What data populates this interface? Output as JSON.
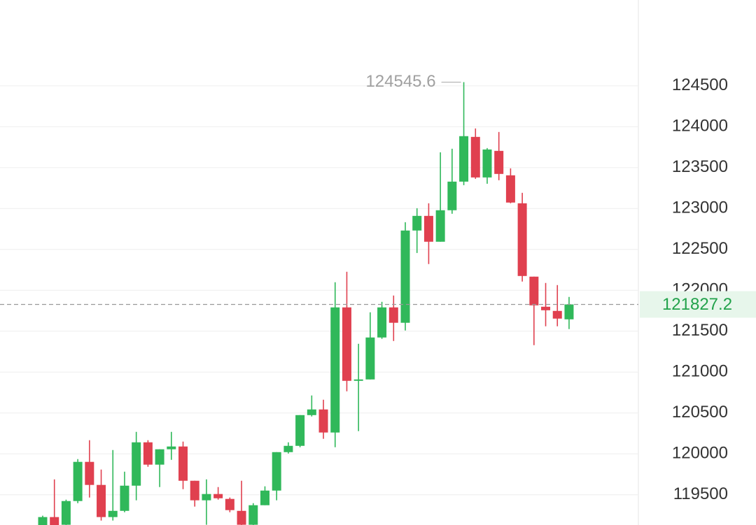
{
  "chart_data": {
    "type": "candlestick",
    "up_color": "#30b85a",
    "down_color": "#e0404f",
    "ylim": [
      119130,
      125550
    ],
    "yticks": [
      119500,
      120000,
      120500,
      121000,
      121500,
      122000,
      122500,
      123000,
      123500,
      124000,
      124500
    ],
    "grid": true,
    "open": [
      119056,
      119227,
      119133,
      119423,
      119902,
      119620,
      119227,
      119303,
      119611,
      120141,
      119868,
      120056,
      120090,
      119671,
      119432,
      119509,
      119449,
      119303,
      119133,
      119372,
      119551,
      120021,
      120098,
      120474,
      120543,
      120261,
      121791,
      120893,
      120910,
      121423,
      121791,
      121603,
      122731,
      122910,
      122594,
      122979,
      123329,
      123876,
      123380,
      123705,
      123406,
      123064,
      122167,
      121799,
      121748,
      121645
    ],
    "high": [
      119244,
      119688,
      119440,
      119936,
      120167,
      119808,
      120047,
      119782,
      120269,
      120167,
      120056,
      120269,
      120150,
      119671,
      119688,
      119594,
      119466,
      119671,
      119397,
      119603,
      120021,
      120141,
      120474,
      120714,
      120662,
      122098,
      122227,
      121346,
      121731,
      121859,
      121936,
      122833,
      123004,
      123064,
      123688,
      123731,
      124545.6,
      123979,
      123739,
      123936,
      123491,
      123192,
      122167,
      122090,
      122064,
      121919
    ],
    "low": [
      119056,
      119056,
      119056,
      119397,
      119466,
      119184,
      119184,
      119286,
      119432,
      119842,
      119594,
      119927,
      119568,
      119355,
      119133,
      119440,
      119286,
      119100,
      119100,
      119372,
      119432,
      120004,
      120081,
      120457,
      120184,
      120081,
      120765,
      120278,
      120910,
      121406,
      121380,
      121509,
      122457,
      122321,
      122594,
      122936,
      123286,
      123363,
      123303,
      123346,
      123064,
      122107,
      121329,
      121560,
      121560,
      121526
    ],
    "close": [
      119227,
      119056,
      119423,
      119902,
      119620,
      119227,
      119303,
      119611,
      120141,
      119868,
      120056,
      120090,
      119671,
      119432,
      119509,
      119457,
      119312,
      119133,
      119372,
      119551,
      120021,
      120098,
      120474,
      120543,
      120261,
      121791,
      120893,
      120910,
      121423,
      121791,
      121603,
      122731,
      122910,
      122594,
      122979,
      123329,
      123885,
      123380,
      123722,
      123423,
      123073,
      122175,
      121816,
      121756,
      121654,
      121827.2
    ]
  }
}
